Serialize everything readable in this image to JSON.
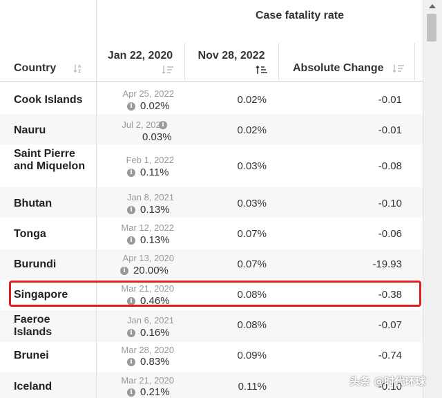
{
  "header": {
    "group_title": "Case fatality rate",
    "country": "Country",
    "jan": "Jan 22, 2020",
    "nov": "Nov 28, 2022",
    "abs": "Absolute Change"
  },
  "info_glyph": "i",
  "rows": [
    {
      "country": "Cook Islands",
      "date": "Apr 25, 2022",
      "jan_value": "0.02%",
      "nov_value": "0.02%",
      "abs_change": "-0.01"
    },
    {
      "country": "Nauru",
      "date": "Jul 2, 2022",
      "jan_value": "0.03%",
      "nov_value": "0.02%",
      "abs_change": "-0.01"
    },
    {
      "country": "Saint Pierre and Miquelon",
      "date": "Feb 1, 2022",
      "jan_value": "0.11%",
      "nov_value": "0.03%",
      "abs_change": "-0.08"
    },
    {
      "country": "Bhutan",
      "date": "Jan 8, 2021",
      "jan_value": "0.13%",
      "nov_value": "0.03%",
      "abs_change": "-0.10"
    },
    {
      "country": "Tonga",
      "date": "Mar 12, 2022",
      "jan_value": "0.13%",
      "nov_value": "0.07%",
      "abs_change": "-0.06"
    },
    {
      "country": "Burundi",
      "date": "Apr 13, 2020",
      "jan_value": "20.00%",
      "nov_value": "0.07%",
      "abs_change": "-19.93"
    },
    {
      "country": "Singapore",
      "date": "Mar 21, 2020",
      "jan_value": "0.46%",
      "nov_value": "0.08%",
      "abs_change": "-0.38"
    },
    {
      "country": "Faeroe Islands",
      "date": "Jan 6, 2021",
      "jan_value": "0.16%",
      "nov_value": "0.08%",
      "abs_change": "-0.07"
    },
    {
      "country": "Brunei",
      "date": "Mar 28, 2020",
      "jan_value": "0.83%",
      "nov_value": "0.09%",
      "abs_change": "-0.74"
    },
    {
      "country": "Iceland",
      "date": "Mar 21, 2020",
      "jan_value": "0.21%",
      "nov_value": "0.11%",
      "abs_change": "-0.10"
    }
  ],
  "highlight_color": "#e02020",
  "watermark": "头条 @时代环球"
}
